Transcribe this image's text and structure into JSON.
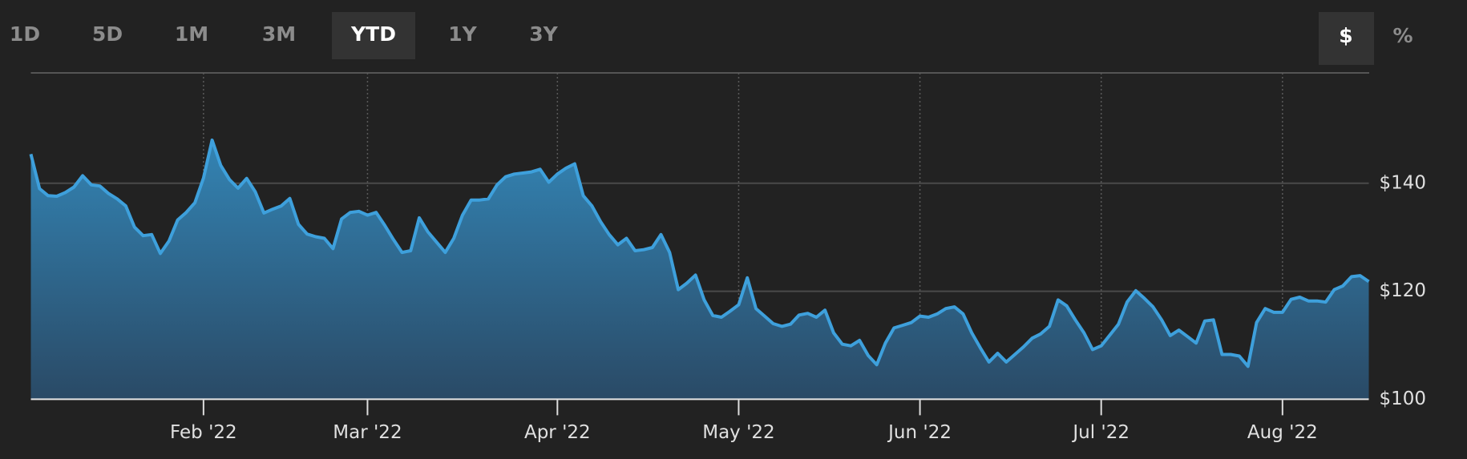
{
  "range_buttons": [
    "1D",
    "5D",
    "1M",
    "3M",
    "YTD",
    "1Y",
    "3Y"
  ],
  "selected_range": 4,
  "unit_buttons": [
    "$",
    "%"
  ],
  "selected_unit": 0,
  "chart_data": {
    "type": "area",
    "color": "#3ea0dc",
    "grid": true,
    "ylim": [
      100,
      160
    ],
    "yticks": [
      {
        "value": 100,
        "label": "$100"
      },
      {
        "value": 120,
        "label": "$120"
      },
      {
        "value": 140,
        "label": "$140"
      }
    ],
    "categories": [
      null,
      null,
      null,
      null,
      null,
      null,
      null,
      null,
      null,
      null,
      null,
      null,
      null,
      null,
      null,
      null,
      null,
      null,
      null,
      null,
      "Feb '22",
      null,
      null,
      null,
      null,
      null,
      null,
      null,
      null,
      null,
      null,
      null,
      null,
      null,
      null,
      null,
      null,
      null,
      null,
      "Mar '22",
      null,
      null,
      null,
      null,
      null,
      null,
      null,
      null,
      null,
      null,
      null,
      null,
      null,
      null,
      null,
      null,
      null,
      null,
      null,
      null,
      null,
      "Apr '22",
      null,
      null,
      null,
      null,
      null,
      null,
      null,
      null,
      null,
      null,
      null,
      null,
      null,
      null,
      null,
      null,
      null,
      null,
      null,
      null,
      "May '22",
      null,
      null,
      null,
      null,
      null,
      null,
      null,
      null,
      null,
      null,
      null,
      null,
      null,
      null,
      null,
      null,
      null,
      null,
      null,
      null,
      "Jun '22",
      null,
      null,
      null,
      null,
      null,
      null,
      null,
      null,
      null,
      null,
      null,
      null,
      null,
      null,
      null,
      null,
      null,
      null,
      null,
      null,
      "Jul '22",
      null,
      null,
      null,
      null,
      null,
      null,
      null,
      null,
      null,
      null,
      null,
      null,
      null,
      null,
      null,
      null,
      null,
      null,
      null,
      null,
      "Aug '22",
      null,
      null,
      null,
      null,
      null,
      null,
      null,
      null,
      null,
      null
    ],
    "values": [
      145.4,
      139.0,
      137.7,
      137.6,
      138.3,
      139.3,
      141.4,
      139.7,
      139.5,
      138.1,
      137.1,
      135.8,
      131.9,
      130.3,
      130.5,
      127.0,
      129.3,
      133.2,
      134.6,
      136.4,
      141.0,
      148.0,
      143.3,
      140.7,
      139.1,
      140.9,
      138.4,
      134.5,
      135.2,
      135.8,
      137.2,
      132.4,
      130.6,
      130.1,
      129.8,
      127.9,
      133.4,
      134.6,
      134.8,
      134.1,
      134.6,
      132.2,
      129.6,
      127.2,
      127.5,
      133.6,
      131.0,
      129.1,
      127.2,
      129.8,
      134.1,
      136.9,
      136.9,
      137.1,
      139.7,
      141.2,
      141.7,
      141.9,
      142.1,
      142.6,
      140.2,
      141.7,
      142.8,
      143.6,
      137.7,
      135.8,
      132.9,
      130.5,
      128.6,
      129.8,
      127.5,
      127.7,
      128.1,
      130.5,
      127.2,
      120.3,
      121.5,
      123.0,
      118.4,
      115.5,
      115.2,
      116.3,
      117.5,
      122.5,
      116.8,
      115.4,
      114.0,
      113.5,
      113.9,
      115.6,
      115.9,
      115.2,
      116.5,
      112.3,
      110.2,
      109.9,
      110.9,
      108.1,
      106.4,
      110.4,
      113.2,
      113.7,
      114.2,
      115.4,
      115.2,
      115.8,
      116.8,
      117.1,
      115.8,
      112.3,
      109.5,
      106.9,
      108.5,
      106.9,
      108.3,
      109.7,
      111.3,
      112.1,
      113.5,
      118.4,
      117.3,
      114.7,
      112.3,
      109.2,
      109.9,
      111.9,
      113.9,
      118.0,
      120.1,
      118.7,
      117.1,
      114.7,
      111.8,
      112.8,
      111.6,
      110.4,
      114.5,
      114.7,
      108.3,
      108.3,
      108.0,
      106.1,
      114.2,
      116.8,
      116.1,
      116.1,
      118.5,
      118.9,
      118.2,
      118.2,
      118.0,
      120.3,
      121.0,
      122.7,
      122.9,
      121.8
    ]
  }
}
